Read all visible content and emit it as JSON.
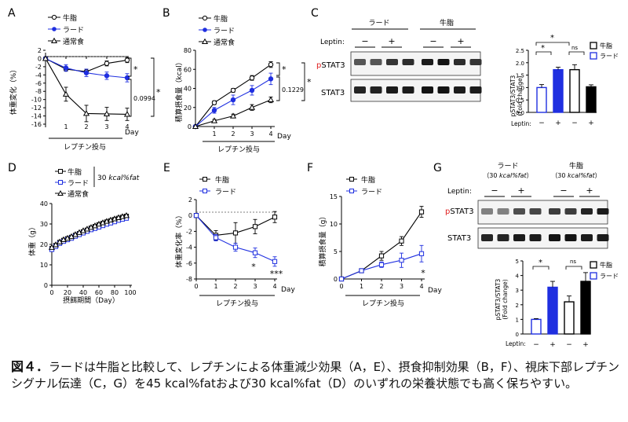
{
  "panels": {
    "A": {
      "letter": "A",
      "ylabel": "体重変化（%）",
      "xlabel": "レプチン投与",
      "day": "Day",
      "legend": [
        "牛脂",
        "ラード",
        "通常食"
      ],
      "stat_top": "*",
      "stat_p": "0.0994",
      "stat_right": "*"
    },
    "B": {
      "letter": "B",
      "ylabel": "積算摂食量（kcal）",
      "xlabel": "レプチン投与",
      "day": "Day",
      "legend": [
        "牛脂",
        "ラード",
        "通常食"
      ],
      "stat_top": "*",
      "stat_p": "0.1229",
      "stat_right": "*"
    },
    "C": {
      "letter": "C",
      "group1": "ラード",
      "group2": "牛脂",
      "leptin": "Leptin:",
      "minus": "−",
      "plus": "+",
      "p_prefix": "p",
      "pstat3": "STAT3",
      "stat3": "STAT3",
      "bar_ylabel1": "pSTAT3/STAT3",
      "bar_ylabel2": "(Fold change)",
      "bar_leptin": "Leptin:",
      "legend": [
        "牛脂",
        "ラード"
      ],
      "stat_star1": "*",
      "stat_star2": "*",
      "stat_ns": "ns"
    },
    "D": {
      "letter": "D",
      "ylabel": "体重（g）",
      "xlabel": "摂餌期間（Day）",
      "legend": [
        "牛脂",
        "ラード",
        "通常食"
      ],
      "kcal_prefix": "30",
      "kcal_unit": "kcal%fat"
    },
    "E": {
      "letter": "E",
      "ylabel": "体重変化率（%）",
      "xlabel": "レプチン投与",
      "day": "Day",
      "legend": [
        "牛脂",
        "ラード"
      ],
      "star_day3": "*",
      "star_day4": "***"
    },
    "F": {
      "letter": "F",
      "ylabel": "積算摂食量（g）",
      "xlabel": "レプチン投与",
      "day": "Day",
      "legend": [
        "牛脂",
        "ラード"
      ],
      "star_day4": "*"
    },
    "G": {
      "letter": "G",
      "group1": "ラード",
      "group2": "牛脂",
      "group_sub_pre": "（30",
      "group_sub_unit": "kcal%fat",
      "group_sub_post": "）",
      "leptin": "Leptin:",
      "minus": "−",
      "plus": "+",
      "p_prefix": "p",
      "pstat3": "STAT3",
      "stat3": "STAT3",
      "bar_ylabel1": "pSTAT3/STAT3",
      "bar_ylabel2": "(Fold change)",
      "bar_leptin": "Leptin:",
      "legend": [
        "牛脂",
        "ラード"
      ],
      "stat_star": "*",
      "stat_ns": "ns"
    }
  },
  "colors": {
    "lard": "#1f2fe0",
    "tallow": "#000000",
    "normal": "#000000",
    "pred": "#e02020"
  },
  "chart_data": [
    {
      "panel": "A",
      "type": "line",
      "x": [
        0,
        1,
        2,
        3,
        4
      ],
      "ylim": [
        -16,
        2
      ],
      "yticks": [
        2,
        0,
        -2,
        -4,
        -6,
        -8,
        -10,
        -12,
        -14,
        -16
      ],
      "xticks": [
        1,
        2,
        3,
        4
      ],
      "series": [
        {
          "name": "牛脂",
          "values": [
            0,
            -2.6,
            -3.2,
            -1.2,
            -0.4
          ],
          "err": [
            0.3,
            0.5,
            0.6,
            0.6,
            0.6
          ]
        },
        {
          "name": "ラード",
          "values": [
            0,
            -2.3,
            -3.5,
            -4.2,
            -4.7
          ],
          "err": [
            0.3,
            0.8,
            0.9,
            0.9,
            1.0
          ]
        },
        {
          "name": "通常食",
          "values": [
            0,
            -8.7,
            -13.4,
            -13.5,
            -13.6
          ],
          "err": [
            0.3,
            1.7,
            2.0,
            1.6,
            1.5
          ]
        }
      ]
    },
    {
      "panel": "B",
      "type": "line",
      "x": [
        0,
        1,
        2,
        3,
        4
      ],
      "ylim": [
        0,
        80
      ],
      "yticks": [
        0,
        20,
        40,
        60,
        80
      ],
      "xticks": [
        1,
        2,
        3,
        4
      ],
      "series": [
        {
          "name": "牛脂",
          "values": [
            0,
            25,
            38,
            51,
            65
          ],
          "err": [
            0.5,
            2,
            2,
            2.5,
            3
          ]
        },
        {
          "name": "ラード",
          "values": [
            0,
            17,
            28,
            38,
            50
          ],
          "err": [
            0.5,
            3,
            5,
            5,
            6
          ]
        },
        {
          "name": "通常食",
          "values": [
            0,
            6,
            11,
            20,
            28
          ],
          "err": [
            0.5,
            1.5,
            2,
            3,
            3
          ]
        }
      ]
    },
    {
      "panel": "C-bar",
      "type": "bar",
      "categories": [
        "−",
        "+",
        "−",
        "+"
      ],
      "values": [
        1.0,
        1.72,
        1.72,
        1.03
      ],
      "err": [
        0.12,
        0.1,
        0.2,
        0.08
      ],
      "groups": [
        "ラード",
        "ラード",
        "牛脂",
        "牛脂"
      ],
      "ylim": [
        0,
        2.5
      ],
      "yticks": [
        0,
        0.5,
        1.0,
        1.5,
        2.0,
        2.5
      ]
    },
    {
      "panel": "D",
      "type": "line",
      "x": [
        0,
        5,
        10,
        15,
        20,
        25,
        30,
        35,
        40,
        45,
        50,
        55,
        60,
        65,
        70,
        75,
        80,
        85,
        90,
        95
      ],
      "ylim": [
        0,
        40
      ],
      "yticks": [
        0,
        10,
        20,
        30,
        40
      ],
      "xlim": [
        0,
        100
      ],
      "xticks": [
        0,
        20,
        40,
        60,
        80,
        100
      ],
      "series": [
        {
          "name": "牛脂",
          "values": [
            18,
            19.5,
            21,
            22,
            22.8,
            23.5,
            24.5,
            25.3,
            26.2,
            27,
            28,
            28.8,
            29.6,
            30.3,
            31,
            31.6,
            32.2,
            32.8,
            33.3,
            33.8
          ]
        },
        {
          "name": "ラード",
          "values": [
            17.5,
            19,
            20.5,
            21.5,
            22.3,
            23,
            24,
            24.8,
            25.6,
            26.4,
            27.2,
            27.8,
            28.5,
            29.2,
            29.9,
            30.5,
            31.1,
            31.8,
            32.3,
            32.8
          ]
        },
        {
          "name": "通常食",
          "values": [
            18.5,
            19.8,
            21.2,
            22.3,
            23,
            23.8,
            24.8,
            25.8,
            26.7,
            27.5,
            28.3,
            29.1,
            29.9,
            30.6,
            31.3,
            31.9,
            32.5,
            33.1,
            33.6,
            34.1
          ]
        }
      ]
    },
    {
      "panel": "E",
      "type": "line",
      "x": [
        0,
        1,
        2,
        3,
        4
      ],
      "ylim": [
        -8,
        2
      ],
      "yticks": [
        2,
        0,
        -2,
        -4,
        -6,
        -8
      ],
      "xticks": [
        0,
        1,
        2,
        3,
        4
      ],
      "series": [
        {
          "name": "牛脂",
          "values": [
            0,
            -2.5,
            -2.2,
            -1.4,
            -0.2
          ],
          "err": [
            0.2,
            0.6,
            1.3,
            0.9,
            0.7
          ]
        },
        {
          "name": "ラード",
          "values": [
            0,
            -2.8,
            -4.0,
            -4.7,
            -5.8
          ],
          "err": [
            0.2,
            0.4,
            0.5,
            0.6,
            0.6
          ]
        }
      ]
    },
    {
      "panel": "F",
      "type": "line",
      "x": [
        0,
        1,
        2,
        3,
        4
      ],
      "ylim": [
        0,
        15
      ],
      "yticks": [
        0,
        5,
        10,
        15
      ],
      "xticks": [
        0,
        1,
        2,
        3,
        4
      ],
      "series": [
        {
          "name": "牛脂",
          "values": [
            0,
            1.5,
            4.2,
            6.9,
            12.2
          ],
          "err": [
            0.1,
            0.3,
            0.8,
            0.8,
            1.0
          ]
        },
        {
          "name": "ラード",
          "values": [
            0,
            1.5,
            2.6,
            3.4,
            4.6
          ],
          "err": [
            0.1,
            0.3,
            0.5,
            1.3,
            1.5
          ]
        }
      ]
    },
    {
      "panel": "G-bar",
      "type": "bar",
      "categories": [
        "−",
        "+",
        "−",
        "+"
      ],
      "values": [
        1.0,
        3.2,
        2.2,
        3.6
      ],
      "err": [
        0.05,
        0.4,
        0.4,
        0.6
      ],
      "groups": [
        "ラード",
        "ラード",
        "牛脂",
        "牛脂"
      ],
      "ylim": [
        0,
        5
      ],
      "yticks": [
        0,
        1,
        2,
        3,
        4,
        5
      ]
    }
  ],
  "caption": {
    "label": "図４．",
    "text": "ラードは牛脂と比較して、レプチンによる体重減少効果（A，E）、摂食抑制効果（B，F）、視床下部レプチンシグナル伝達（C，G）を45 kcal%fatおよび30 kcal%fat（D）のいずれの栄養状態でも高く保ちやすい。"
  }
}
